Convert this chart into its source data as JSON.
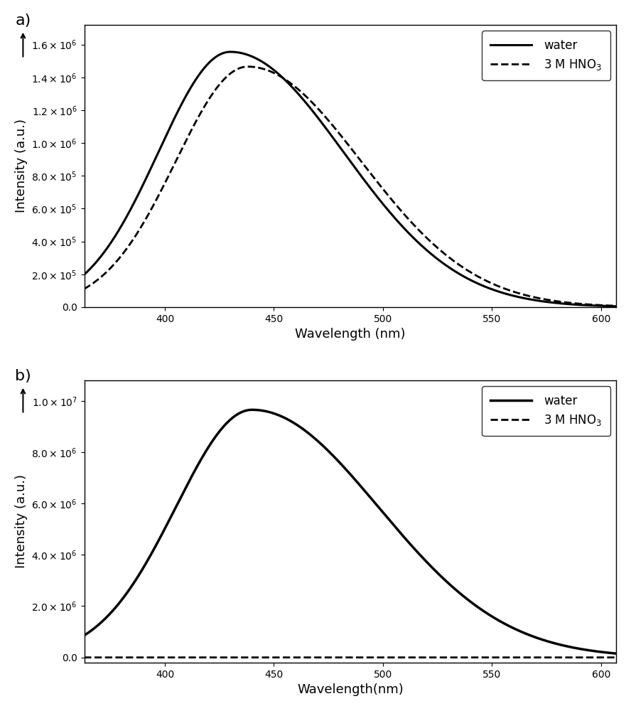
{
  "panel_a": {
    "label": "a)",
    "xlabel": "Wavelength (nm)",
    "ylabel": "Intensity (a.u.)",
    "xlim": [
      363,
      607
    ],
    "ylim": [
      0,
      1720000.0
    ],
    "yticks": [
      0.0,
      200000.0,
      400000.0,
      600000.0,
      800000.0,
      1000000.0,
      1200000.0,
      1400000.0,
      1600000.0
    ],
    "xticks": [
      400,
      450,
      500,
      550,
      600
    ],
    "water_peak": 430,
    "water_peak_val": 1555000.0,
    "water_sigma_l": 33,
    "water_sigma_r": 52,
    "hno3_peak": 438,
    "hno3_peak_val": 1465000.0,
    "hno3_sigma_l": 33,
    "hno3_sigma_r": 52,
    "legend_water": "water",
    "legend_hno3": "3 M HNO$_3$"
  },
  "panel_b": {
    "label": "b)",
    "xlabel": "Wavelength(nm)",
    "ylabel": "Intensity (a.u.)",
    "xlim": [
      363,
      607
    ],
    "ylim": [
      -200000.0,
      10800000.0
    ],
    "yticks": [
      0.0,
      2000000.0,
      4000000.0,
      6000000.0,
      8000000.0,
      10000000.0
    ],
    "xticks": [
      400,
      450,
      500,
      550,
      600
    ],
    "water_peak": 440,
    "water_peak_val": 9650000.0,
    "water_sigma_l": 35,
    "water_sigma_r": 58,
    "hno3_flat_val": 0.0,
    "legend_water": "water",
    "legend_hno3": "3 M HNO$_3$"
  },
  "background_color": "#ffffff",
  "linewidth_solid": 2.2,
  "linewidth_dashed": 2.0
}
